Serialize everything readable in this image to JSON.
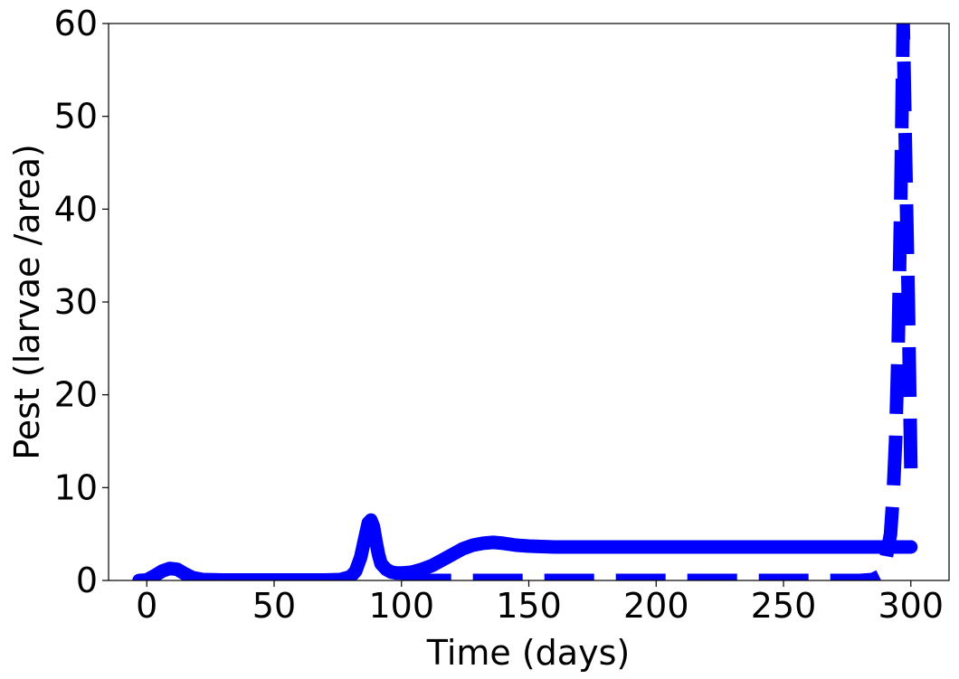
{
  "chart_data": {
    "type": "line",
    "title": "",
    "xlabel": "Time (days)",
    "ylabel": "Pest (larvae /area)",
    "xlim": [
      -15,
      315
    ],
    "ylim": [
      0,
      60
    ],
    "xticks": [
      0,
      50,
      100,
      150,
      200,
      250,
      300
    ],
    "yticks": [
      0,
      10,
      20,
      30,
      40,
      50,
      60
    ],
    "grid": false,
    "legend": "none",
    "series": [
      {
        "style": "solid",
        "color": "#0000ff",
        "x": [
          -3,
          0,
          3,
          6,
          9,
          12,
          15,
          18,
          22,
          30,
          40,
          50,
          60,
          70,
          76,
          80,
          82,
          84,
          86,
          87,
          88,
          89,
          90,
          91,
          92,
          94,
          96,
          98,
          100,
          104,
          108,
          112,
          116,
          120,
          124,
          128,
          132,
          136,
          140,
          145,
          150,
          160,
          170,
          180,
          200,
          220,
          240,
          260,
          280,
          300
        ],
        "y": [
          0,
          0.05,
          0.5,
          1.0,
          1.3,
          1.2,
          0.7,
          0.3,
          0.1,
          0.05,
          0.05,
          0.05,
          0.05,
          0.05,
          0.1,
          0.4,
          1.0,
          2.5,
          5.0,
          6.2,
          6.5,
          5.8,
          4.2,
          2.8,
          1.8,
          1.2,
          0.9,
          0.8,
          0.8,
          0.9,
          1.2,
          1.6,
          2.2,
          2.8,
          3.4,
          3.8,
          4.0,
          4.1,
          4.0,
          3.8,
          3.7,
          3.6,
          3.6,
          3.6,
          3.6,
          3.6,
          3.6,
          3.6,
          3.6,
          3.6
        ]
      },
      {
        "style": "dashed",
        "color": "#0000ff",
        "x": [
          100,
          120,
          150,
          200,
          250,
          280,
          285,
          288,
          290,
          292,
          293,
          294,
          295,
          296,
          297,
          298,
          299,
          300
        ],
        "y": [
          0,
          0,
          0,
          0,
          0,
          0,
          0.1,
          0.5,
          2.0,
          5.0,
          9.0,
          15.0,
          25.0,
          40.0,
          60.0,
          45.0,
          30.0,
          12.0
        ]
      }
    ]
  }
}
